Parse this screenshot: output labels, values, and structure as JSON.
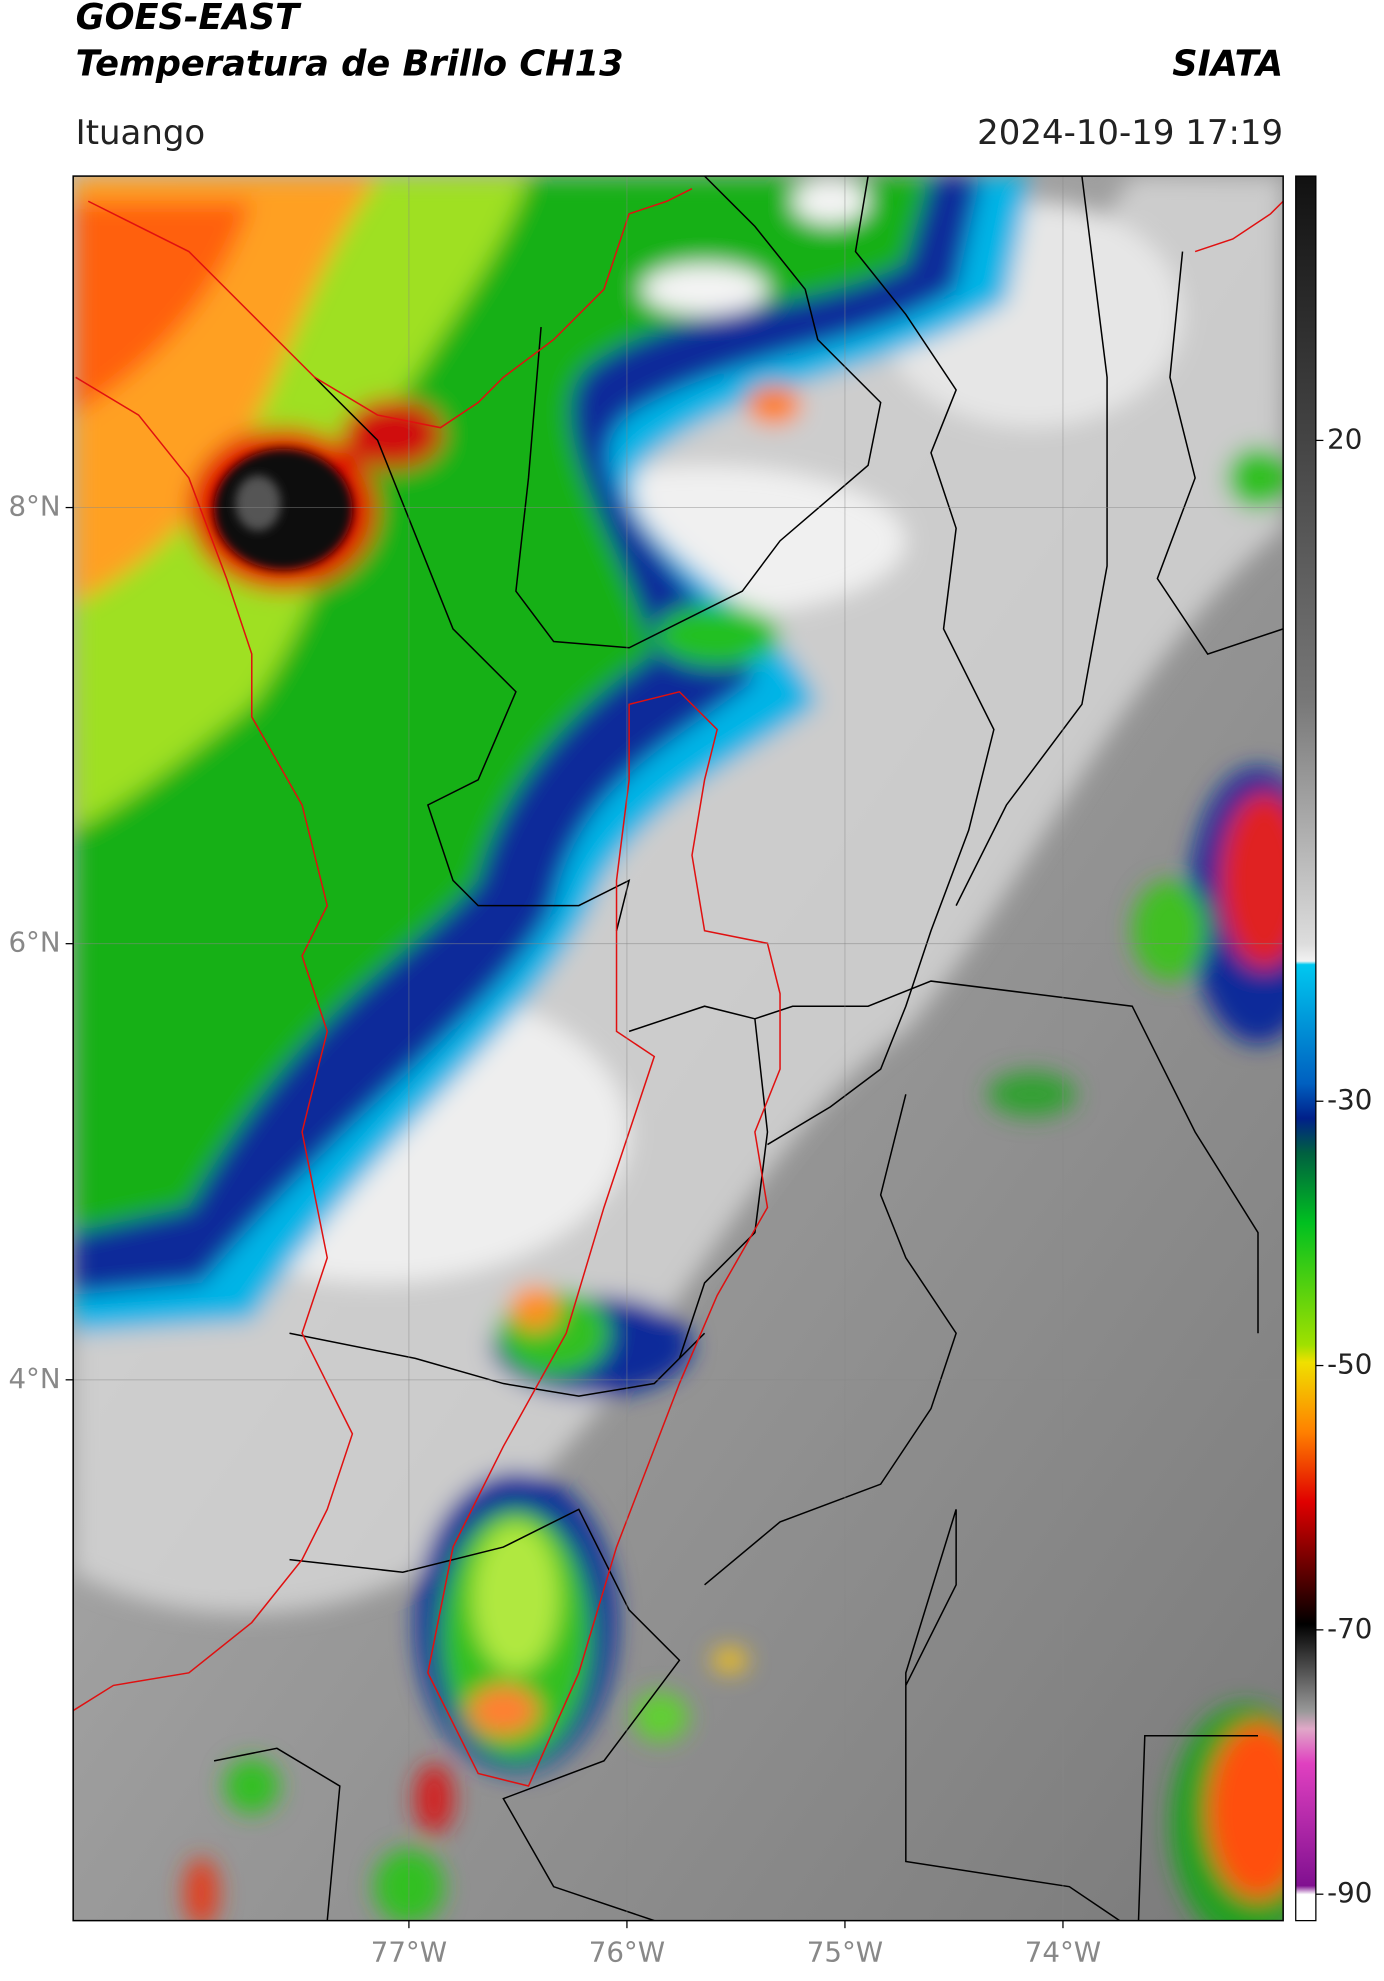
{
  "header": {
    "satellite": "GOES-EAST",
    "product": "Temperatura de Brillo CH13",
    "agency": "SIATA",
    "location": "Ituango",
    "timestamp": "2024-10-19 17:19"
  },
  "map": {
    "lonlim": [
      -78.54,
      -72.99
    ],
    "latlim": [
      1.52,
      9.52
    ],
    "lonticks": [
      {
        "value": -77,
        "label": "77°W"
      },
      {
        "value": -76,
        "label": "76°W"
      },
      {
        "value": -75,
        "label": "75°W"
      },
      {
        "value": -74,
        "label": "74°W"
      }
    ],
    "latticks": [
      {
        "value": 8,
        "label": "8°N"
      },
      {
        "value": 6,
        "label": "6°N"
      },
      {
        "value": 4,
        "label": "4°N"
      }
    ],
    "grid": true
  },
  "colorbar": {
    "lim": [
      -92,
      40
    ],
    "ticks": [
      20,
      -30,
      -50,
      -70,
      -90
    ]
  }
}
